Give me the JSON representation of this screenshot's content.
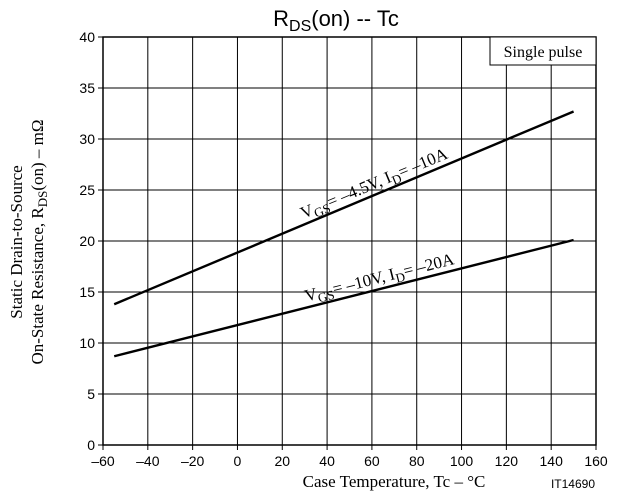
{
  "chart_data": {
    "type": "line",
    "title_main": "R",
    "title_sub": "DS",
    "title_rest": "(on)  --  Tc",
    "xlabel": "Case Temperature, Tc  –  °C",
    "ylabel_line1": "Static Drain-to-Source",
    "ylabel_line2_pre": "On-State Resistance, R",
    "ylabel_line2_sub": "DS",
    "ylabel_line2_post": "(on)  –  mΩ",
    "xlim": [
      -60,
      160
    ],
    "ylim": [
      0,
      40
    ],
    "x_ticks": [
      -60,
      -40,
      -20,
      0,
      20,
      40,
      60,
      80,
      100,
      120,
      140,
      160
    ],
    "y_ticks": [
      0,
      5,
      10,
      15,
      20,
      25,
      30,
      35,
      40
    ],
    "grid": true,
    "annotation_box": "Single pulse",
    "part_number": "IT14690",
    "series": [
      {
        "label_v": "V",
        "label_v_sub": "GS",
        "label_mid": "= –4.5V, I",
        "label_i_sub": "D",
        "label_end": "= –10A",
        "x": [
          -55,
          150
        ],
        "values": [
          13.8,
          32.7
        ]
      },
      {
        "label_v": "V",
        "label_v_sub": "GS",
        "label_mid": "= –10V, I",
        "label_i_sub": "D",
        "label_end": "= –20A",
        "x": [
          -55,
          150
        ],
        "values": [
          8.7,
          20.1
        ]
      }
    ]
  }
}
